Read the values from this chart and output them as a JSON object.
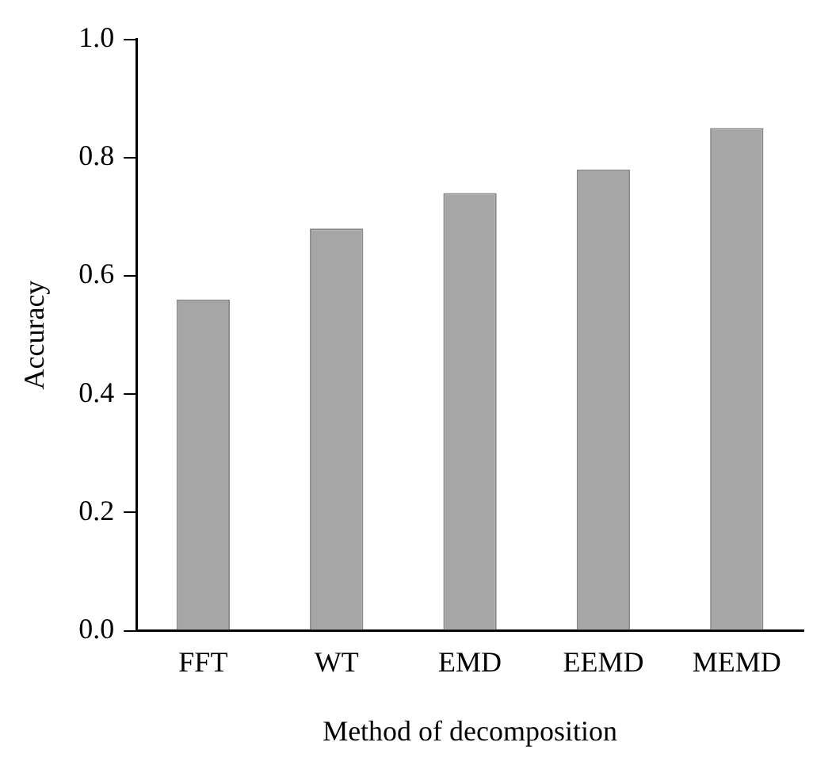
{
  "chart_data": {
    "type": "bar",
    "xlabel": "Method of decomposition",
    "ylabel": "Accuracy",
    "categories": [
      "FFT",
      "WT",
      "EMD",
      "EEMD",
      "MEMD"
    ],
    "values": [
      0.56,
      0.68,
      0.74,
      0.78,
      0.85
    ],
    "color": "#a6a6a6",
    "ylim": [
      0,
      1
    ],
    "yticks": [
      {
        "value": 0,
        "label": "0.0"
      },
      {
        "value": 0.2,
        "label": "0.2"
      },
      {
        "value": 0.4,
        "label": "0.4"
      },
      {
        "value": 0.6,
        "label": "0.6"
      },
      {
        "value": 0.8,
        "label": "0.8"
      },
      {
        "value": 1,
        "label": "1.0"
      }
    ],
    "grid": false,
    "legend": false
  }
}
